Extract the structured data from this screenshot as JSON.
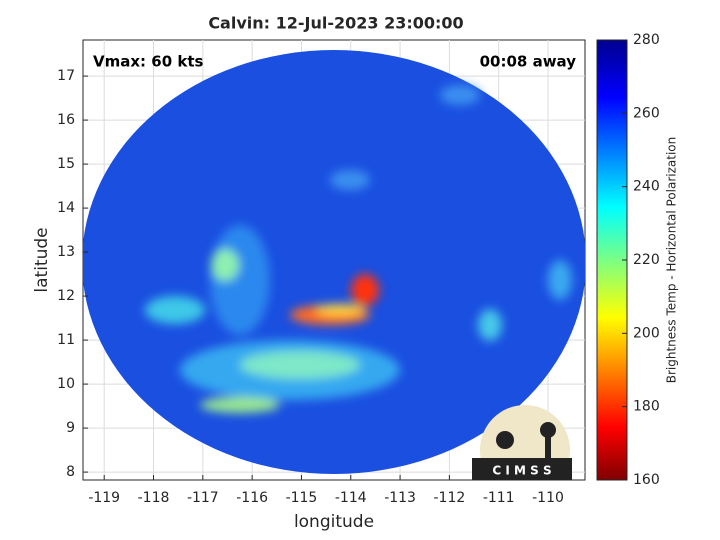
{
  "chart_data": {
    "type": "map",
    "title": "Calvin: 12-Jul-2023 23:00:00",
    "annotations": [
      "Vmax: 60 kts",
      "00:08 away"
    ],
    "xlabel": "longitude",
    "ylabel": "latitude",
    "xlim": [
      -119.43,
      -109.25
    ],
    "xticks": [
      -119,
      -118,
      -117,
      -116,
      -115,
      -114,
      -113,
      -112,
      -111,
      -110
    ],
    "ylim": [
      7.82,
      17.82
    ],
    "yticks": [
      8,
      9,
      10,
      11,
      12,
      13,
      14,
      15,
      16,
      17
    ],
    "grid": true,
    "colorbar": {
      "label": "Brightness Temp - Horizontal Polarization",
      "lim": [
        160,
        280
      ],
      "ticks": [
        160,
        180,
        200,
        220,
        240,
        260,
        280
      ]
    },
    "logo_text": "C I M S S"
  }
}
